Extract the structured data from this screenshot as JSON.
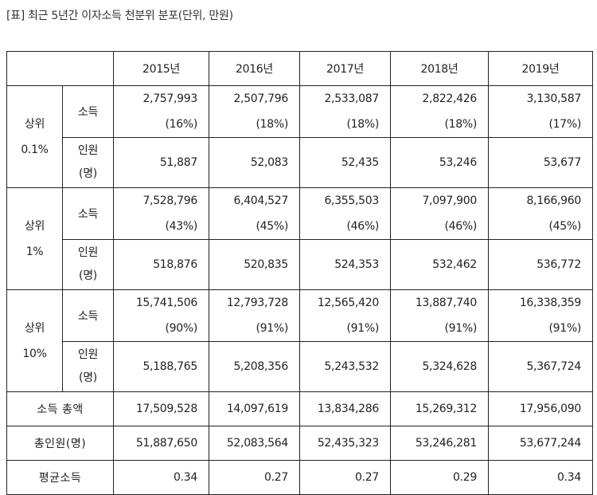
{
  "caption": "[표] 최근 5년간 이자소득 천분위 분포(단위, 만원)",
  "years": [
    "2015년",
    "2016년",
    "2017년",
    "2018년",
    "2019년"
  ],
  "groups": [
    {
      "label": [
        "상위",
        "0.1%"
      ],
      "income_label": "소득",
      "people_label": [
        "인원",
        "(명)"
      ],
      "income": [
        "2,757,993",
        "2,507,796",
        "2,533,087",
        "2,822,426",
        "3,130,587"
      ],
      "share": [
        "(16%)",
        "(18%)",
        "(18%)",
        "(18%)",
        "(17%)"
      ],
      "people": [
        "51,887",
        "52,083",
        "52,435",
        "53,246",
        "53,677"
      ]
    },
    {
      "label": [
        "상위",
        "1%"
      ],
      "income_label": "소득",
      "people_label": [
        "인원",
        "(명)"
      ],
      "income": [
        "7,528,796",
        "6,404,527",
        "6,355,503",
        "7,097,900",
        "8,166,960"
      ],
      "share": [
        "(43%)",
        "(45%)",
        "(46%)",
        "(46%)",
        "(45%)"
      ],
      "people": [
        "518,876",
        "520,835",
        "524,353",
        "532,462",
        "536,772"
      ]
    },
    {
      "label": [
        "상위",
        "10%"
      ],
      "income_label": "소득",
      "people_label": [
        "인원",
        "(명)"
      ],
      "income": [
        "15,741,506",
        "12,793,728",
        "12,565,420",
        "13,887,740",
        "16,338,359"
      ],
      "share": [
        "(90%)",
        "(91%)",
        "(91%)",
        "(91%)",
        "(91%)"
      ],
      "people": [
        "5,188,765",
        "5,208,356",
        "5,243,532",
        "5,324,628",
        "5,367,724"
      ]
    }
  ],
  "totals": [
    {
      "label": "소득 총액",
      "values": [
        "17,509,528",
        "14,097,619",
        "13,834,286",
        "15,269,312",
        "17,956,090"
      ]
    },
    {
      "label": "총인원(명)",
      "values": [
        "51,887,650",
        "52,083,564",
        "52,435,323",
        "53,246,281",
        "53,677,244"
      ]
    },
    {
      "label": "평균소득",
      "values": [
        "0.34",
        "0.27",
        "0.27",
        "0.29",
        "0.34"
      ]
    }
  ]
}
